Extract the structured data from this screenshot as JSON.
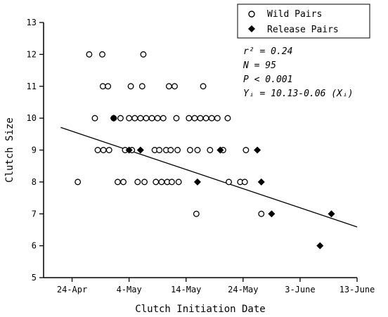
{
  "chart_data": {
    "type": "scatter",
    "title": "",
    "xlabel": "Clutch Initiation Date",
    "ylabel": "Clutch Size",
    "x_unit": "day of year",
    "x_ticks": [
      {
        "value": 114,
        "label": "24-Apr"
      },
      {
        "value": 124,
        "label": "4-May"
      },
      {
        "value": 134,
        "label": "14-May"
      },
      {
        "value": 144,
        "label": "24-May"
      },
      {
        "value": 154,
        "label": "3-June"
      },
      {
        "value": 164,
        "label": "13-June"
      }
    ],
    "xlim": [
      109,
      164
    ],
    "ylim": [
      5,
      13
    ],
    "y_ticks": [
      5,
      6,
      7,
      8,
      9,
      10,
      11,
      12,
      13
    ],
    "grid": false,
    "legend_position": "top-right",
    "series": [
      {
        "name": "Wild Pairs",
        "marker": "open-circle",
        "color": "#000000",
        "points": [
          [
            115,
            8
          ],
          [
            117,
            12
          ],
          [
            118,
            10
          ],
          [
            118.5,
            9
          ],
          [
            119.3,
            12
          ],
          [
            119.4,
            11
          ],
          [
            119.5,
            9
          ],
          [
            120.3,
            11
          ],
          [
            120.5,
            9
          ],
          [
            121.3,
            10
          ],
          [
            122,
            8
          ],
          [
            122.5,
            10
          ],
          [
            123,
            8
          ],
          [
            123.3,
            9
          ],
          [
            124,
            10
          ],
          [
            124.3,
            11
          ],
          [
            124.5,
            9
          ],
          [
            125,
            10
          ],
          [
            125.5,
            8
          ],
          [
            126,
            10
          ],
          [
            126.3,
            11
          ],
          [
            126.5,
            12
          ],
          [
            126.7,
            8
          ],
          [
            127,
            10
          ],
          [
            128,
            10
          ],
          [
            128.5,
            9
          ],
          [
            128.7,
            8
          ],
          [
            129,
            10
          ],
          [
            129.3,
            9
          ],
          [
            129.7,
            8
          ],
          [
            130,
            10
          ],
          [
            130.5,
            9
          ],
          [
            130.7,
            8
          ],
          [
            131,
            11
          ],
          [
            131.3,
            9
          ],
          [
            131.5,
            8
          ],
          [
            132,
            11
          ],
          [
            132.3,
            10
          ],
          [
            132.5,
            9
          ],
          [
            132.7,
            8
          ],
          [
            134.5,
            10
          ],
          [
            134.7,
            9
          ],
          [
            135.5,
            10
          ],
          [
            136,
            9
          ],
          [
            135.8,
            7
          ],
          [
            136.5,
            10
          ],
          [
            137,
            11
          ],
          [
            137.5,
            10
          ],
          [
            138.2,
            9
          ],
          [
            138.5,
            10
          ],
          [
            139.5,
            10
          ],
          [
            140.5,
            9
          ],
          [
            141.3,
            10
          ],
          [
            141.5,
            8
          ],
          [
            143.5,
            8
          ],
          [
            144.3,
            8
          ],
          [
            144.5,
            9
          ],
          [
            147.2,
            7
          ]
        ]
      },
      {
        "name": "Release Pairs",
        "marker": "filled-diamond",
        "color": "#000000",
        "points": [
          [
            121.3,
            10
          ],
          [
            124,
            9
          ],
          [
            126,
            9
          ],
          [
            136,
            8
          ],
          [
            140,
            9
          ],
          [
            146.5,
            9
          ],
          [
            147.2,
            8
          ],
          [
            149,
            7
          ],
          [
            157.5,
            6
          ],
          [
            159.5,
            7
          ]
        ]
      }
    ],
    "regression": {
      "intercept": 10.13,
      "slope": -0.06,
      "x_range": [
        112,
        164
      ]
    },
    "annotations": {
      "r2_label": "r² = 0.24",
      "n_label": "N = 95",
      "p_label": "P < 0.001",
      "eq_label": "Yᵢ = 10.13-0.06 (Xᵢ)"
    }
  }
}
